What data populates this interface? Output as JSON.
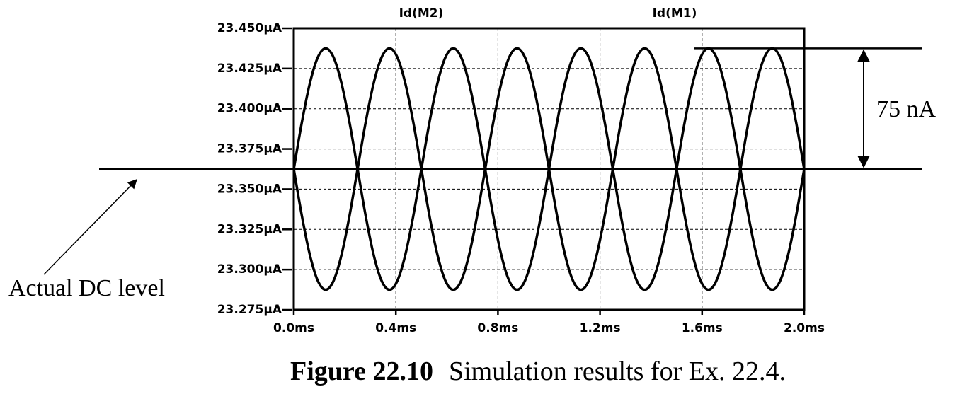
{
  "chart_data": {
    "type": "line",
    "caption": {
      "label": "Figure 22.10",
      "text": "Simulation results for Ex. 22.4."
    },
    "x": [
      0,
      0.03125,
      0.0625,
      0.09375,
      0.125,
      0.15625,
      0.1875,
      0.21875,
      0.25,
      0.28125,
      0.3125,
      0.34375,
      0.375,
      0.40625,
      0.4375,
      0.46875,
      0.5,
      0.53125,
      0.5625,
      0.59375,
      0.625,
      0.65625,
      0.6875,
      0.71875,
      0.75,
      0.78125,
      0.8125,
      0.84375,
      0.875,
      0.90625,
      0.9375,
      0.96875,
      1,
      1.03125,
      1.0625,
      1.09375,
      1.125,
      1.15625,
      1.1875,
      1.21875,
      1.25,
      1.28125,
      1.3125,
      1.34375,
      1.375,
      1.40625,
      1.4375,
      1.46875,
      1.5,
      1.53125,
      1.5625,
      1.59375,
      1.625,
      1.65625,
      1.6875,
      1.71875,
      1.75,
      1.78125,
      1.8125,
      1.84375,
      1.875,
      1.90625,
      1.9375,
      1.96875,
      2
    ],
    "series": [
      {
        "name": "Id(M2)",
        "color": "#000000",
        "values": [
          23.3625,
          23.3912,
          23.4155,
          23.4318,
          23.4375,
          23.4318,
          23.4155,
          23.3912,
          23.3625,
          23.3338,
          23.3095,
          23.2932,
          23.2875,
          23.2932,
          23.3095,
          23.3338,
          23.3625,
          23.3912,
          23.4155,
          23.4318,
          23.4375,
          23.4318,
          23.4155,
          23.3912,
          23.3625,
          23.3338,
          23.3095,
          23.2932,
          23.2875,
          23.2932,
          23.3095,
          23.3338,
          23.3625,
          23.3912,
          23.4155,
          23.4318,
          23.4375,
          23.4318,
          23.4155,
          23.3912,
          23.3625,
          23.3338,
          23.3095,
          23.2932,
          23.2875,
          23.2932,
          23.3095,
          23.3338,
          23.3625,
          23.3912,
          23.4155,
          23.4318,
          23.4375,
          23.4318,
          23.4155,
          23.3912,
          23.3625,
          23.3338,
          23.3095,
          23.2932,
          23.2875,
          23.2932,
          23.3095,
          23.3338,
          23.3625
        ]
      },
      {
        "name": "Id(M1)",
        "color": "#000000",
        "values": [
          23.3625,
          23.3338,
          23.3095,
          23.2932,
          23.2875,
          23.2932,
          23.3095,
          23.3338,
          23.3625,
          23.3912,
          23.4155,
          23.4318,
          23.4375,
          23.4318,
          23.4155,
          23.3912,
          23.3625,
          23.3338,
          23.3095,
          23.2932,
          23.2875,
          23.2932,
          23.3095,
          23.3338,
          23.3625,
          23.3912,
          23.4155,
          23.4318,
          23.4375,
          23.4318,
          23.4155,
          23.3912,
          23.3625,
          23.3338,
          23.3095,
          23.2932,
          23.2875,
          23.2932,
          23.3095,
          23.3338,
          23.3625,
          23.3912,
          23.4155,
          23.4318,
          23.4375,
          23.4318,
          23.4155,
          23.3912,
          23.3625,
          23.3338,
          23.3095,
          23.2932,
          23.2875,
          23.2932,
          23.3095,
          23.3338,
          23.3625,
          23.3912,
          23.4155,
          23.4318,
          23.4375,
          23.4318,
          23.4155,
          23.3912,
          23.3625
        ]
      }
    ],
    "xlim": [
      0,
      2
    ],
    "ylim": [
      23.275,
      23.45
    ],
    "xticks": [
      {
        "value": 0,
        "label": "0.0ms"
      },
      {
        "value": 0.4,
        "label": "0.4ms"
      },
      {
        "value": 0.8,
        "label": "0.8ms"
      },
      {
        "value": 1.2,
        "label": "1.2ms"
      },
      {
        "value": 1.6,
        "label": "1.6ms"
      },
      {
        "value": 2,
        "label": "2.0ms"
      }
    ],
    "yticks": [
      {
        "value": 23.275,
        "label": "23.275µA"
      },
      {
        "value": 23.3,
        "label": "23.300µA"
      },
      {
        "value": 23.325,
        "label": "23.325µA"
      },
      {
        "value": 23.35,
        "label": "23.350µA"
      },
      {
        "value": 23.375,
        "label": "23.375µA"
      },
      {
        "value": 23.4,
        "label": "23.400µA"
      },
      {
        "value": 23.425,
        "label": "23.425µA"
      },
      {
        "value": 23.45,
        "label": "23.450µA"
      }
    ],
    "grid": true,
    "dc_level": {
      "label": "Actual DC level",
      "value": 23.3625
    },
    "amplitude": {
      "label": "75 nA",
      "from": 23.3625,
      "to": 23.4375
    }
  }
}
